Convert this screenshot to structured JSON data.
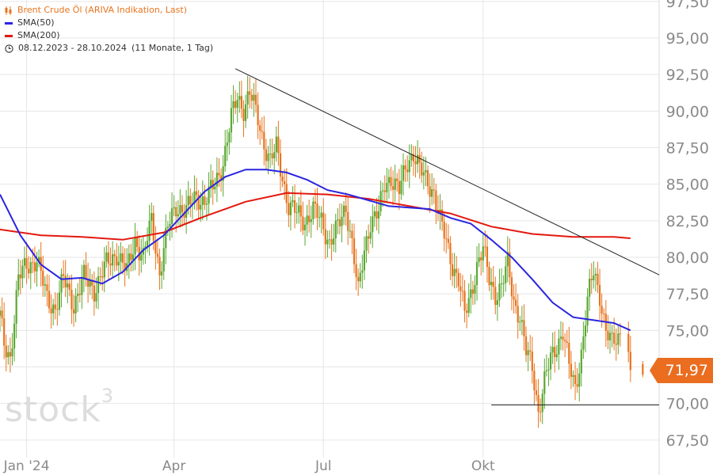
{
  "legend": {
    "title": "Brent Crude Öl (ARIVA Indikation, Last)",
    "sma50": "SMA(50)",
    "sma200": "SMA(200)",
    "range": "08.12.2023 - 28.10.2024",
    "range_detail": "(11 Monate, 1 Tag)"
  },
  "icons": {
    "candle": "candlestick-icon",
    "clock": "clock-icon"
  },
  "colors": {
    "up": "#5aa832",
    "down": "#e8741e",
    "sma50": "#2a25e0",
    "sma200": "#e3180f",
    "price": "#ea6d20"
  },
  "last_price": "71,97",
  "watermark": "stock",
  "watermark_sup": "3",
  "chart_data": {
    "type": "candlestick",
    "title": "Brent Crude Öl (ARIVA Indikation, Last)",
    "x_range": [
      "2023-12-08",
      "2024-10-28"
    ],
    "x_ticks": [
      "Jan '24",
      "Apr",
      "Jul",
      "Okt"
    ],
    "y_ticks": [
      "67,50",
      "70,00",
      "72,50",
      "75,00",
      "77,50",
      "80,00",
      "82,50",
      "85,00",
      "87,50",
      "90,00",
      "92,50",
      "95,00",
      "97,50"
    ],
    "ylim": [
      66.3,
      97.6
    ],
    "grid": true,
    "legend_position": "top-left",
    "last": 71.97,
    "close_series": [
      {
        "t": 0,
        "v": 76.0
      },
      {
        "t": 2,
        "v": 74.0
      },
      {
        "t": 5,
        "v": 73.2
      },
      {
        "t": 9,
        "v": 78.5
      },
      {
        "t": 13,
        "v": 79.5
      },
      {
        "t": 18,
        "v": 79.8
      },
      {
        "t": 23,
        "v": 77.2
      },
      {
        "t": 27,
        "v": 76.5
      },
      {
        "t": 31,
        "v": 78.5
      },
      {
        "t": 36,
        "v": 76.8
      },
      {
        "t": 41,
        "v": 78.6
      },
      {
        "t": 46,
        "v": 77.8
      },
      {
        "t": 52,
        "v": 79.5
      },
      {
        "t": 57,
        "v": 80.3
      },
      {
        "t": 62,
        "v": 79.0
      },
      {
        "t": 66,
        "v": 81.2
      },
      {
        "t": 70,
        "v": 80.0
      },
      {
        "t": 74,
        "v": 82.5
      },
      {
        "t": 78,
        "v": 79.0
      },
      {
        "t": 82,
        "v": 82.0
      },
      {
        "t": 86,
        "v": 83.5
      },
      {
        "t": 91,
        "v": 83.2
      },
      {
        "t": 96,
        "v": 84.2
      },
      {
        "t": 100,
        "v": 83.8
      },
      {
        "t": 105,
        "v": 85.0
      },
      {
        "t": 109,
        "v": 86.5
      },
      {
        "t": 113,
        "v": 89.5
      },
      {
        "t": 116,
        "v": 91.0
      },
      {
        "t": 119,
        "v": 90.2
      },
      {
        "t": 122,
        "v": 91.2
      },
      {
        "t": 126,
        "v": 89.5
      },
      {
        "t": 129,
        "v": 87.8
      },
      {
        "t": 132,
        "v": 86.5
      },
      {
        "t": 135,
        "v": 87.5
      },
      {
        "t": 138,
        "v": 85.5
      },
      {
        "t": 141,
        "v": 83.5
      },
      {
        "t": 145,
        "v": 83.0
      },
      {
        "t": 149,
        "v": 82.5
      },
      {
        "t": 153,
        "v": 83.2
      },
      {
        "t": 157,
        "v": 82.5
      },
      {
        "t": 161,
        "v": 81.0
      },
      {
        "t": 165,
        "v": 82.0
      },
      {
        "t": 169,
        "v": 83.5
      },
      {
        "t": 172,
        "v": 81.0
      },
      {
        "t": 175,
        "v": 77.5
      },
      {
        "t": 178,
        "v": 80.5
      },
      {
        "t": 181,
        "v": 82.5
      },
      {
        "t": 185,
        "v": 83.0
      },
      {
        "t": 188,
        "v": 85.0
      },
      {
        "t": 191,
        "v": 85.5
      },
      {
        "t": 195,
        "v": 84.5
      },
      {
        "t": 199,
        "v": 86.5
      },
      {
        "t": 202,
        "v": 87.2
      },
      {
        "t": 205,
        "v": 86.0
      },
      {
        "t": 208,
        "v": 85.3
      },
      {
        "t": 212,
        "v": 84.5
      },
      {
        "t": 215,
        "v": 82.5
      },
      {
        "t": 218,
        "v": 81.0
      },
      {
        "t": 221,
        "v": 79.5
      },
      {
        "t": 224,
        "v": 78.5
      },
      {
        "t": 227,
        "v": 76.0
      },
      {
        "t": 230,
        "v": 77.5
      },
      {
        "t": 233,
        "v": 79.5
      },
      {
        "t": 236,
        "v": 80.5
      },
      {
        "t": 239,
        "v": 78.5
      },
      {
        "t": 242,
        "v": 77.5
      },
      {
        "t": 245,
        "v": 78.0
      },
      {
        "t": 248,
        "v": 79.5
      },
      {
        "t": 251,
        "v": 77.0
      },
      {
        "t": 254,
        "v": 76.0
      },
      {
        "t": 257,
        "v": 73.5
      },
      {
        "t": 260,
        "v": 72.5
      },
      {
        "t": 263,
        "v": 69.5
      },
      {
        "t": 266,
        "v": 71.5
      },
      {
        "t": 269,
        "v": 73.0
      },
      {
        "t": 272,
        "v": 74.0
      },
      {
        "t": 275,
        "v": 75.0
      },
      {
        "t": 278,
        "v": 72.5
      },
      {
        "t": 281,
        "v": 71.0
      },
      {
        "t": 284,
        "v": 73.5
      },
      {
        "t": 287,
        "v": 77.0
      },
      {
        "t": 290,
        "v": 79.0
      },
      {
        "t": 293,
        "v": 77.5
      },
      {
        "t": 296,
        "v": 75.0
      },
      {
        "t": 299,
        "v": 74.0
      },
      {
        "t": 302,
        "v": 74.5
      },
      {
        "t": 305,
        "v": 75.5
      },
      {
        "t": 308,
        "v": 72.5
      }
    ],
    "sma50": [
      {
        "t": 0,
        "v": 84.3
      },
      {
        "t": 10,
        "v": 81.5
      },
      {
        "t": 20,
        "v": 79.5
      },
      {
        "t": 30,
        "v": 78.5
      },
      {
        "t": 40,
        "v": 78.6
      },
      {
        "t": 50,
        "v": 78.2
      },
      {
        "t": 60,
        "v": 79.0
      },
      {
        "t": 70,
        "v": 80.5
      },
      {
        "t": 80,
        "v": 81.5
      },
      {
        "t": 90,
        "v": 83.0
      },
      {
        "t": 100,
        "v": 84.5
      },
      {
        "t": 110,
        "v": 85.5
      },
      {
        "t": 120,
        "v": 86.0
      },
      {
        "t": 130,
        "v": 86.0
      },
      {
        "t": 140,
        "v": 85.8
      },
      {
        "t": 150,
        "v": 85.3
      },
      {
        "t": 160,
        "v": 84.6
      },
      {
        "t": 170,
        "v": 84.3
      },
      {
        "t": 180,
        "v": 83.9
      },
      {
        "t": 190,
        "v": 83.5
      },
      {
        "t": 200,
        "v": 83.4
      },
      {
        "t": 210,
        "v": 83.3
      },
      {
        "t": 220,
        "v": 82.7
      },
      {
        "t": 230,
        "v": 82.3
      },
      {
        "t": 240,
        "v": 81.2
      },
      {
        "t": 250,
        "v": 80.0
      },
      {
        "t": 260,
        "v": 78.5
      },
      {
        "t": 270,
        "v": 76.9
      },
      {
        "t": 280,
        "v": 75.9
      },
      {
        "t": 290,
        "v": 75.7
      },
      {
        "t": 300,
        "v": 75.5
      },
      {
        "t": 308,
        "v": 75.0
      }
    ],
    "sma200": [
      {
        "t": 0,
        "v": 81.9
      },
      {
        "t": 20,
        "v": 81.5
      },
      {
        "t": 40,
        "v": 81.4
      },
      {
        "t": 60,
        "v": 81.2
      },
      {
        "t": 80,
        "v": 81.7
      },
      {
        "t": 100,
        "v": 82.8
      },
      {
        "t": 120,
        "v": 83.8
      },
      {
        "t": 140,
        "v": 84.4
      },
      {
        "t": 160,
        "v": 84.3
      },
      {
        "t": 180,
        "v": 84.0
      },
      {
        "t": 200,
        "v": 83.5
      },
      {
        "t": 220,
        "v": 83.0
      },
      {
        "t": 240,
        "v": 82.1
      },
      {
        "t": 260,
        "v": 81.6
      },
      {
        "t": 280,
        "v": 81.4
      },
      {
        "t": 300,
        "v": 81.4
      },
      {
        "t": 308,
        "v": 81.3
      }
    ],
    "trendlines": [
      {
        "from": {
          "t": 115,
          "v": 92.9
        },
        "to": {
          "t": 322,
          "v": 78.8
        }
      },
      {
        "from": {
          "t": 240,
          "v": 69.9
        },
        "to": {
          "t": 322,
          "v": 69.9
        }
      }
    ]
  }
}
